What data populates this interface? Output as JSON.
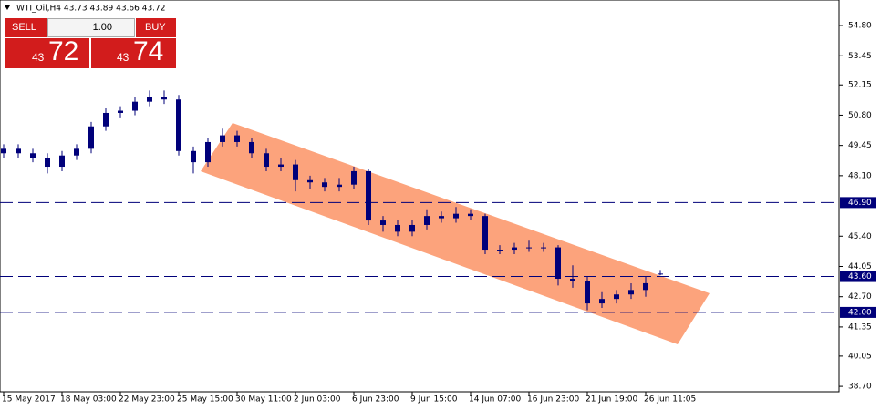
{
  "chart_data": {
    "type": "candlestick",
    "title": "WTI_Oil,H4  43.73 43.89 43.66 43.72",
    "color": "#00007a",
    "channel_color": "#fca37c",
    "x": [
      0,
      1,
      2,
      3,
      4,
      5,
      6,
      7,
      8,
      9,
      10,
      11,
      12,
      13,
      14,
      15,
      16,
      17,
      18,
      19,
      20,
      21,
      22,
      23,
      24,
      25,
      26,
      27,
      28,
      29,
      30,
      31,
      32,
      33,
      34,
      35,
      36,
      37,
      38,
      39,
      40,
      41,
      42,
      43,
      44,
      45
    ],
    "open": [
      49.1,
      49.3,
      49.1,
      48.9,
      48.5,
      49.0,
      49.3,
      50.3,
      50.9,
      51.0,
      51.4,
      51.6,
      51.5,
      49.2,
      48.7,
      49.6,
      49.9,
      49.6,
      49.1,
      48.5,
      48.6,
      47.9,
      47.8,
      47.6,
      47.7,
      48.3,
      46.1,
      45.9,
      45.6,
      45.9,
      46.3,
      46.2,
      46.4,
      46.3,
      44.8,
      44.8,
      44.9,
      44.9,
      44.9,
      43.5,
      43.4,
      42.4,
      42.6,
      42.8,
      43.0,
      43.73
    ],
    "high": [
      49.5,
      49.5,
      49.3,
      49.1,
      49.2,
      49.5,
      50.5,
      51.1,
      51.2,
      51.6,
      51.9,
      51.9,
      51.7,
      49.4,
      49.8,
      50.2,
      50.1,
      49.8,
      49.3,
      48.9,
      48.8,
      48.1,
      48.0,
      48.0,
      48.5,
      48.4,
      46.3,
      46.1,
      46.1,
      46.6,
      46.5,
      46.7,
      46.6,
      46.4,
      45.0,
      45.1,
      45.2,
      45.1,
      45.0,
      44.1,
      43.6,
      42.9,
      43.0,
      43.3,
      43.6,
      43.89
    ],
    "low": [
      48.9,
      48.9,
      48.7,
      48.2,
      48.3,
      48.8,
      49.1,
      50.1,
      50.7,
      50.8,
      51.2,
      51.3,
      49.0,
      48.2,
      48.5,
      49.4,
      49.4,
      48.9,
      48.3,
      48.3,
      47.4,
      47.5,
      47.4,
      47.4,
      47.5,
      45.9,
      45.6,
      45.4,
      45.4,
      45.7,
      46.0,
      46.0,
      46.1,
      44.6,
      44.6,
      44.6,
      44.7,
      44.7,
      43.2,
      43.1,
      42.1,
      42.2,
      42.4,
      42.6,
      42.7,
      43.66
    ],
    "close": [
      49.3,
      49.1,
      48.9,
      48.5,
      49.0,
      49.3,
      50.3,
      50.9,
      51.0,
      51.4,
      51.6,
      51.5,
      49.2,
      48.7,
      49.6,
      49.9,
      49.6,
      49.1,
      48.5,
      48.6,
      47.9,
      47.8,
      47.6,
      47.7,
      48.3,
      46.1,
      45.9,
      45.6,
      45.9,
      46.3,
      46.2,
      46.4,
      46.3,
      44.8,
      44.8,
      44.9,
      44.9,
      44.9,
      43.5,
      43.4,
      42.4,
      42.6,
      42.8,
      43.0,
      43.3,
      43.72
    ],
    "xlim": [
      -0.25,
      57.25
    ],
    "xticks": [
      {
        "value": 0,
        "label": "15 May 2017"
      },
      {
        "value": 4,
        "label": "18 May 03:00"
      },
      {
        "value": 8,
        "label": "22 May 23:00"
      },
      {
        "value": 12,
        "label": "25 May 15:00"
      },
      {
        "value": 16,
        "label": "30 May 11:00"
      },
      {
        "value": 20,
        "label": "2 Jun 03:00"
      },
      {
        "value": 24,
        "label": "6 Jun 23:00"
      },
      {
        "value": 28,
        "label": "9 Jun 15:00"
      },
      {
        "value": 32,
        "label": "14 Jun 07:00"
      },
      {
        "value": 36,
        "label": "16 Jun 23:00"
      },
      {
        "value": 40,
        "label": "21 Jun 19:00"
      },
      {
        "value": 44,
        "label": "26 Jun 11:05"
      }
    ],
    "ylim": [
      38.46,
      55.94
    ],
    "yticks": [
      {
        "value": 54.8,
        "label": "54.80"
      },
      {
        "value": 53.45,
        "label": "53.45"
      },
      {
        "value": 52.15,
        "label": "52.15"
      },
      {
        "value": 50.8,
        "label": "50.80"
      },
      {
        "value": 49.45,
        "label": "49.45"
      },
      {
        "value": 48.1,
        "label": "48.10"
      },
      {
        "value": 45.4,
        "label": "45.40"
      },
      {
        "value": 44.05,
        "label": "44.05"
      },
      {
        "value": 42.7,
        "label": "42.70"
      },
      {
        "value": 41.35,
        "label": "41.35"
      },
      {
        "value": 40.05,
        "label": "40.05"
      },
      {
        "value": 38.7,
        "label": "38.70"
      }
    ],
    "levels": [
      {
        "value": 46.9,
        "label": "46.90"
      },
      {
        "value": 43.6,
        "label": "43.60"
      },
      {
        "value": 42.0,
        "label": "42.00"
      }
    ],
    "level_color": "#00007a"
  },
  "trade_panel": {
    "sell": "SELL",
    "lot": "1.00",
    "buy": "BUY",
    "bid_big": "43",
    "bid_small": "72",
    "ask_big": "43",
    "ask_small": "74"
  }
}
